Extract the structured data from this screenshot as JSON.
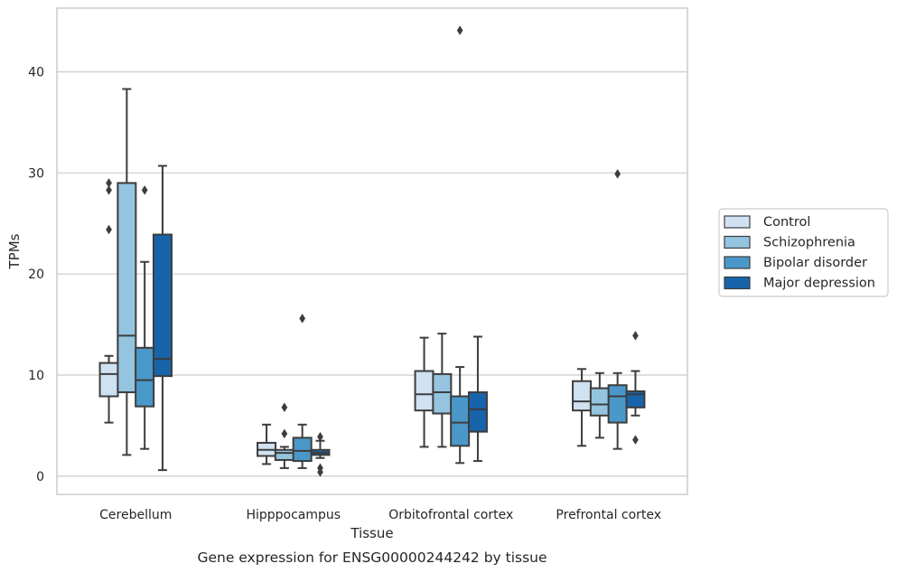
{
  "caption": "Gene expression for ENSG00000244242 by tissue",
  "chart_data": {
    "type": "box",
    "xlabel": "Tissue",
    "ylabel": "TPMs",
    "ylim": [
      -1.8,
      46.3
    ],
    "yticks": [
      0,
      10,
      20,
      30,
      40
    ],
    "grid": "horizontal",
    "legend_position": "right",
    "categories": [
      "Cerebellum",
      "Hipppocampus",
      "Orbitofrontal cortex",
      "Prefrontal cortex"
    ],
    "series": [
      {
        "name": "Control",
        "color": "#d0e1f2",
        "boxes": [
          {
            "whislo": 5.3,
            "q1": 7.9,
            "med": 10.1,
            "q3": 11.2,
            "whishi": 11.9,
            "fliers": [
              24.4,
              28.3,
              29.0
            ]
          },
          {
            "whislo": 1.2,
            "q1": 2.0,
            "med": 2.6,
            "q3": 3.3,
            "whishi": 5.1,
            "fliers": []
          },
          {
            "whislo": 2.9,
            "q1": 6.5,
            "med": 8.1,
            "q3": 10.4,
            "whishi": 13.7,
            "fliers": []
          },
          {
            "whislo": 3.0,
            "q1": 6.5,
            "med": 7.4,
            "q3": 9.4,
            "whishi": 10.6,
            "fliers": []
          }
        ]
      },
      {
        "name": "Schizophrenia",
        "color": "#94c4df",
        "boxes": [
          {
            "whislo": 2.1,
            "q1": 8.3,
            "med": 13.9,
            "q3": 29.0,
            "whishi": 38.3,
            "fliers": []
          },
          {
            "whislo": 0.8,
            "q1": 1.6,
            "med": 2.3,
            "q3": 2.6,
            "whishi": 2.9,
            "fliers": [
              4.2,
              6.8
            ]
          },
          {
            "whislo": 2.9,
            "q1": 6.2,
            "med": 8.3,
            "q3": 10.1,
            "whishi": 14.1,
            "fliers": []
          },
          {
            "whislo": 3.8,
            "q1": 6.0,
            "med": 7.1,
            "q3": 8.7,
            "whishi": 10.2,
            "fliers": []
          }
        ]
      },
      {
        "name": "Bipolar disorder",
        "color": "#4a98c9",
        "boxes": [
          {
            "whislo": 2.7,
            "q1": 6.9,
            "med": 9.5,
            "q3": 12.7,
            "whishi": 21.2,
            "fliers": [
              28.3
            ]
          },
          {
            "whislo": 0.8,
            "q1": 1.5,
            "med": 2.5,
            "q3": 3.8,
            "whishi": 5.1,
            "fliers": [
              15.6
            ]
          },
          {
            "whislo": 1.3,
            "q1": 3.0,
            "med": 5.3,
            "q3": 7.9,
            "whishi": 10.8,
            "fliers": [
              44.1
            ]
          },
          {
            "whislo": 2.7,
            "q1": 5.3,
            "med": 7.9,
            "q3": 9.0,
            "whishi": 10.2,
            "fliers": [
              29.9
            ]
          }
        ]
      },
      {
        "name": "Major depression",
        "color": "#1764ab",
        "boxes": [
          {
            "whislo": 0.6,
            "q1": 9.9,
            "med": 11.6,
            "q3": 23.9,
            "whishi": 30.7,
            "fliers": []
          },
          {
            "whislo": 1.8,
            "q1": 2.1,
            "med": 2.3,
            "q3": 2.6,
            "whishi": 3.5,
            "fliers": [
              0.4,
              0.8,
              3.9
            ]
          },
          {
            "whislo": 1.5,
            "q1": 4.4,
            "med": 6.6,
            "q3": 8.3,
            "whishi": 13.8,
            "fliers": []
          },
          {
            "whislo": 6.0,
            "q1": 6.8,
            "med": 8.1,
            "q3": 8.4,
            "whishi": 10.4,
            "fliers": [
              3.6,
              13.9
            ]
          }
        ]
      }
    ]
  }
}
